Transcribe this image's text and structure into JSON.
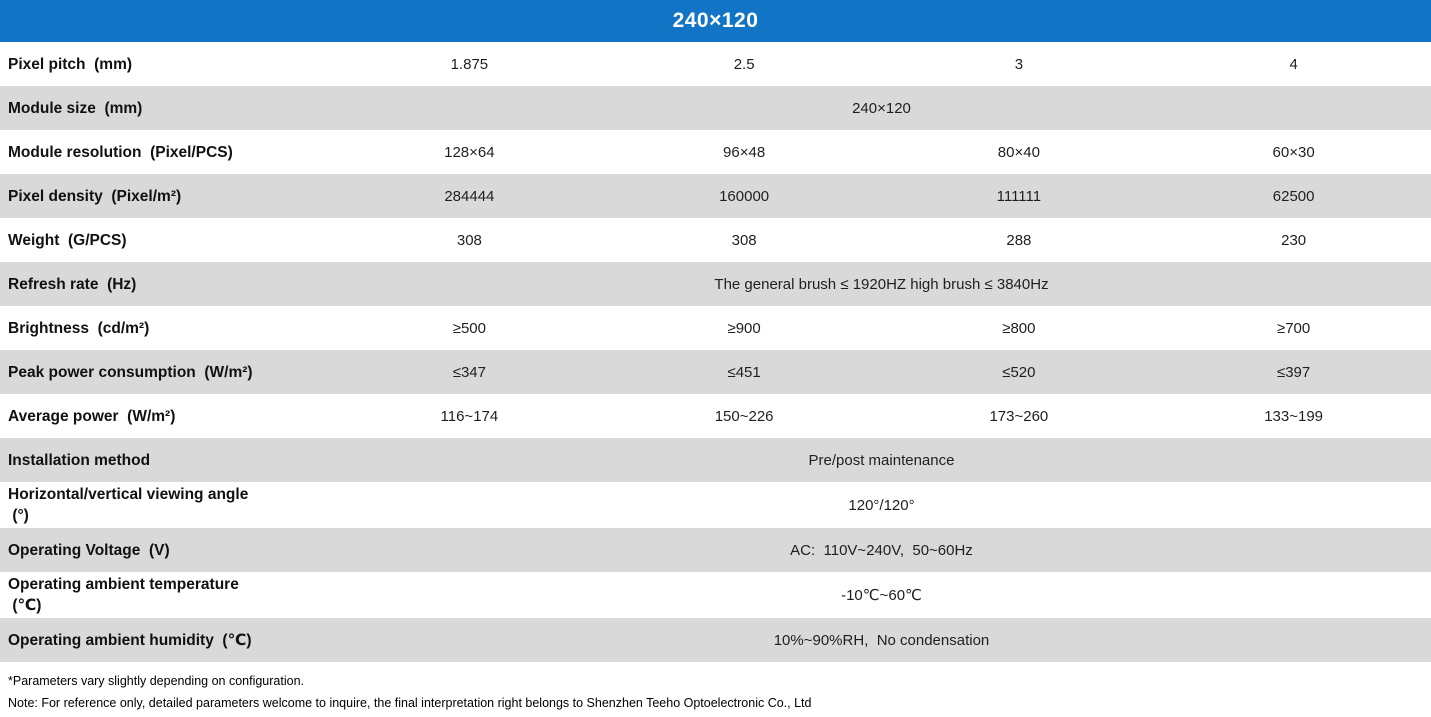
{
  "header": {
    "title": "240×120",
    "accent_color": "#1274c5",
    "alt_row_color": "#d9d9d9"
  },
  "rows": [
    {
      "label": "Pixel pitch  (mm)",
      "values": [
        "1.875",
        "2.5",
        "3",
        "4"
      ]
    },
    {
      "label": "Module size  (mm)",
      "span": "240×120"
    },
    {
      "label": "Module resolution  (Pixel/PCS)",
      "values": [
        "128×64",
        "96×48",
        "80×40",
        "60×30"
      ]
    },
    {
      "label": "Pixel density  (Pixel/m²)",
      "values": [
        "284444",
        "160000",
        "111111",
        "62500"
      ]
    },
    {
      "label": "Weight  (G/PCS)",
      "values": [
        "308",
        "308",
        "288",
        "230"
      ]
    },
    {
      "label": "Refresh rate  (Hz)",
      "span": "The general brush ≤ 1920HZ high brush ≤ 3840Hz"
    },
    {
      "label": "Brightness  (cd/m²)",
      "values": [
        "≥500",
        "≥900",
        "≥800",
        "≥700"
      ]
    },
    {
      "label": "Peak power consumption  (W/m²)",
      "values": [
        "≤347",
        "≤451",
        "≤520",
        "≤397"
      ]
    },
    {
      "label": "Average power  (W/m²)",
      "values": [
        "116~174",
        "150~226",
        "173~260",
        "133~199"
      ]
    },
    {
      "label": "Installation method",
      "span": "Pre/post maintenance"
    },
    {
      "label": "Horizontal/vertical viewing angle\n (°)",
      "span": "120°/120°"
    },
    {
      "label": "Operating Voltage  (V)",
      "span": "AC:  110V~240V,  50~60Hz"
    },
    {
      "label": "Operating ambient temperature\n (℃)",
      "span": "-10℃~60℃"
    },
    {
      "label": "Operating ambient humidity  (℃)",
      "span": "10%~90%RH,  No condensation"
    }
  ],
  "footer": {
    "note1": "*Parameters vary slightly depending on configuration.",
    "note2": "Note: For reference only, detailed parameters welcome to inquire, the final interpretation right belongs to Shenzhen Teeho Optoelectronic Co., Ltd"
  }
}
